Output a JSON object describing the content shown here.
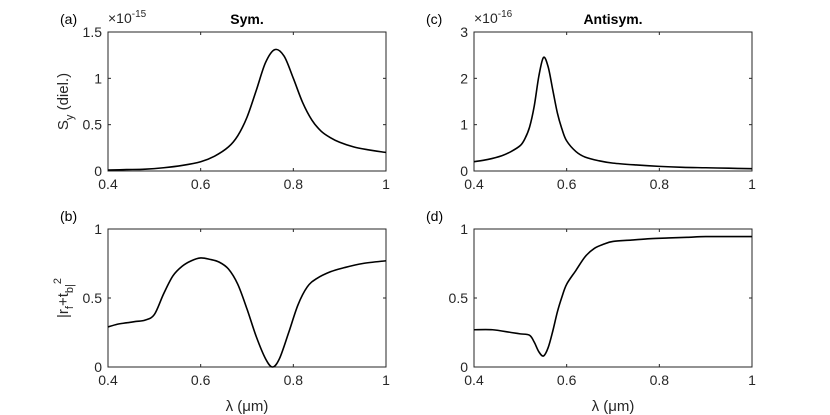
{
  "chart_data": [
    {
      "id": "a",
      "panel_label": "(a)",
      "title": "Sym.",
      "type": "line",
      "ylabel": "S_y (diel.)",
      "xlabel": "",
      "exponent": "-15",
      "xlim": [
        0.4,
        1.0
      ],
      "ylim": [
        0,
        1.5
      ],
      "xticks": [
        "0.4",
        "0.6",
        "0.8",
        "1"
      ],
      "yticks": [
        "0",
        "0.5",
        "1",
        "1.5"
      ],
      "series": [
        {
          "name": "S_y",
          "x": [
            0.4,
            0.44,
            0.48,
            0.52,
            0.56,
            0.6,
            0.63,
            0.66,
            0.68,
            0.7,
            0.72,
            0.74,
            0.76,
            0.78,
            0.8,
            0.82,
            0.84,
            0.86,
            0.88,
            0.9,
            0.93,
            0.96,
            1.0
          ],
          "y": [
            0.01,
            0.015,
            0.02,
            0.035,
            0.06,
            0.1,
            0.16,
            0.26,
            0.38,
            0.58,
            0.87,
            1.17,
            1.31,
            1.24,
            1.0,
            0.74,
            0.55,
            0.43,
            0.36,
            0.31,
            0.26,
            0.23,
            0.2
          ]
        }
      ]
    },
    {
      "id": "c",
      "panel_label": "(c)",
      "title": "Antisym.",
      "type": "line",
      "ylabel": "",
      "xlabel": "",
      "exponent": "-16",
      "xlim": [
        0.4,
        1.0
      ],
      "ylim": [
        0,
        3
      ],
      "xticks": [
        "0.4",
        "0.6",
        "0.8",
        "1"
      ],
      "yticks": [
        "0",
        "1",
        "2",
        "3"
      ],
      "series": [
        {
          "name": "S_y",
          "x": [
            0.4,
            0.43,
            0.46,
            0.48,
            0.5,
            0.51,
            0.52,
            0.53,
            0.54,
            0.55,
            0.56,
            0.57,
            0.58,
            0.59,
            0.6,
            0.62,
            0.64,
            0.67,
            0.7,
            0.75,
            0.8,
            0.85,
            0.9,
            0.95,
            1.0
          ],
          "y": [
            0.2,
            0.25,
            0.33,
            0.42,
            0.55,
            0.7,
            0.95,
            1.4,
            2.05,
            2.45,
            2.25,
            1.75,
            1.25,
            0.9,
            0.65,
            0.42,
            0.3,
            0.22,
            0.17,
            0.13,
            0.1,
            0.08,
            0.07,
            0.06,
            0.05
          ]
        }
      ]
    },
    {
      "id": "b",
      "panel_label": "(b)",
      "title": "",
      "type": "line",
      "ylabel": "|r_f+t_b|^2",
      "xlabel": "λ (μm)",
      "exponent": "",
      "xlim": [
        0.4,
        1.0
      ],
      "ylim": [
        0,
        1
      ],
      "xticks": [
        "0.4",
        "0.6",
        "0.8",
        "1"
      ],
      "yticks": [
        "0",
        "0.5",
        "1"
      ],
      "series": [
        {
          "name": "|r_f+t_b|^2",
          "x": [
            0.4,
            0.42,
            0.44,
            0.46,
            0.48,
            0.5,
            0.52,
            0.54,
            0.56,
            0.58,
            0.6,
            0.62,
            0.64,
            0.66,
            0.68,
            0.7,
            0.72,
            0.74,
            0.755,
            0.77,
            0.79,
            0.81,
            0.83,
            0.85,
            0.88,
            0.91,
            0.95,
            1.0
          ],
          "y": [
            0.29,
            0.31,
            0.32,
            0.33,
            0.34,
            0.38,
            0.53,
            0.66,
            0.73,
            0.77,
            0.79,
            0.78,
            0.76,
            0.71,
            0.6,
            0.42,
            0.22,
            0.06,
            0.0,
            0.06,
            0.25,
            0.45,
            0.58,
            0.64,
            0.69,
            0.72,
            0.75,
            0.77
          ]
        }
      ]
    },
    {
      "id": "d",
      "panel_label": "(d)",
      "title": "",
      "type": "line",
      "ylabel": "",
      "xlabel": "λ (μm)",
      "exponent": "",
      "xlim": [
        0.4,
        1.0
      ],
      "ylim": [
        0,
        1
      ],
      "xticks": [
        "0.4",
        "0.6",
        "0.8",
        "1"
      ],
      "yticks": [
        "0",
        "0.5",
        "1"
      ],
      "series": [
        {
          "name": "|r_f+t_b|^2",
          "x": [
            0.4,
            0.44,
            0.48,
            0.5,
            0.52,
            0.53,
            0.54,
            0.55,
            0.56,
            0.57,
            0.58,
            0.59,
            0.6,
            0.62,
            0.64,
            0.66,
            0.68,
            0.7,
            0.74,
            0.78,
            0.82,
            0.86,
            0.9,
            0.95,
            1.0
          ],
          "y": [
            0.27,
            0.27,
            0.25,
            0.24,
            0.23,
            0.18,
            0.11,
            0.08,
            0.14,
            0.26,
            0.4,
            0.51,
            0.6,
            0.7,
            0.8,
            0.86,
            0.89,
            0.91,
            0.92,
            0.93,
            0.935,
            0.94,
            0.945,
            0.945,
            0.945
          ]
        }
      ]
    }
  ]
}
